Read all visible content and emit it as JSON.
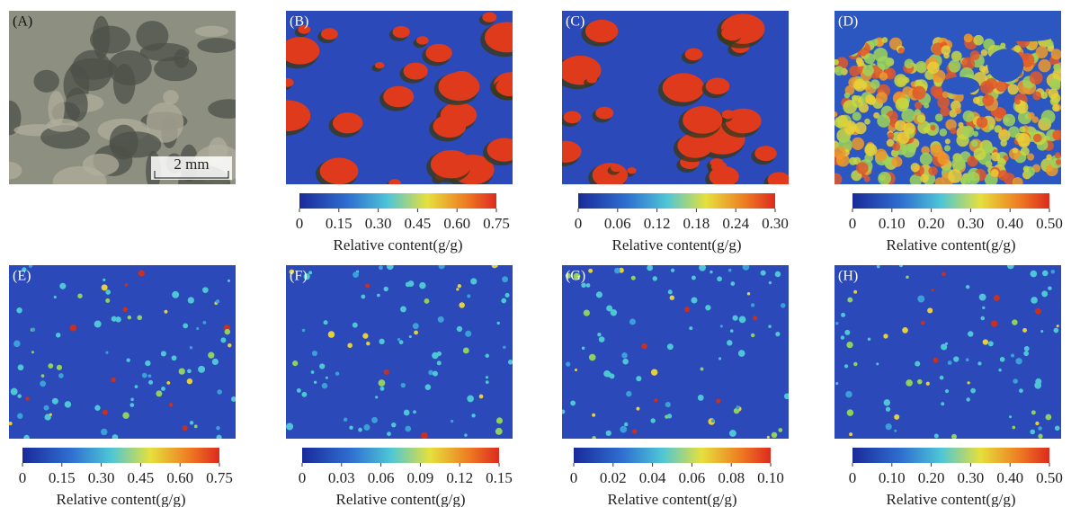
{
  "panels": [
    {
      "label": "(A)",
      "scale_bar": "2 mm"
    },
    {
      "label": "(B)",
      "colorbar": {
        "ticks": [
          0,
          0.15,
          {
            "value": 0.3,
            "label": "0.30"
          },
          0.45,
          {
            "value": 0.6,
            "label": "0.60"
          },
          0.75
        ],
        "label": "Relative content(g/g)"
      }
    },
    {
      "label": "(C)",
      "colorbar": {
        "ticks": [
          0,
          0.06,
          0.12,
          0.18,
          0.24,
          {
            "value": 0.3,
            "label": "0.30"
          }
        ],
        "label": "Relative content(g/g)"
      }
    },
    {
      "label": "(D)",
      "colorbar": {
        "ticks": [
          0,
          {
            "value": 0.1,
            "label": "0.10"
          },
          {
            "value": 0.2,
            "label": "0.20"
          },
          {
            "value": 0.3,
            "label": "0.30"
          },
          {
            "value": 0.4,
            "label": "0.40"
          },
          {
            "value": 0.5,
            "label": "0.50"
          }
        ],
        "label": "Relative content(g/g)"
      }
    },
    {
      "label": "(E)",
      "colorbar": {
        "ticks": [
          0,
          0.15,
          {
            "value": 0.3,
            "label": "0.30"
          },
          0.45,
          {
            "value": 0.6,
            "label": "0.60"
          },
          0.75
        ],
        "label": "Relative content(g/g)"
      }
    },
    {
      "label": "(F)",
      "colorbar": {
        "ticks": [
          0,
          0.03,
          0.06,
          0.09,
          0.12,
          0.15
        ],
        "label": "Relative content(g/g)"
      }
    },
    {
      "label": "(G)",
      "colorbar": {
        "ticks": [
          0,
          0.02,
          0.04,
          0.06,
          0.08,
          {
            "value": 0.1,
            "label": "0.10"
          }
        ],
        "label": "Relative content(g/g)"
      }
    },
    {
      "label": "(H)",
      "colorbar": {
        "ticks": [
          0,
          {
            "value": 0.1,
            "label": "0.10"
          },
          {
            "value": 0.2,
            "label": "0.20"
          },
          {
            "value": 0.3,
            "label": "0.30"
          },
          {
            "value": 0.4,
            "label": "0.40"
          },
          {
            "value": 0.5,
            "label": "0.50"
          }
        ],
        "label": "Relative content(g/g)"
      }
    }
  ]
}
